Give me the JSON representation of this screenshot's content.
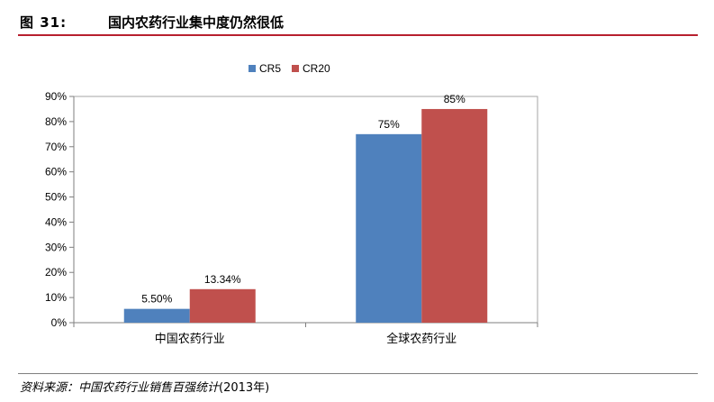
{
  "header": {
    "figure_label": "图 31:",
    "figure_title": "国内农药行业集中度仍然很低"
  },
  "footer": {
    "source_text": "资料来源：中国农药行业销售百强统计",
    "source_year": "(2013年)"
  },
  "colors": {
    "rule_top": "#b7202e",
    "CR5": "#4f81bd",
    "CR20": "#c0504d"
  },
  "chart_data": {
    "type": "bar",
    "title": "",
    "xlabel": "",
    "ylabel": "",
    "categories": [
      "中国农药行业",
      "全球农药行业"
    ],
    "series": [
      {
        "name": "CR5",
        "values": [
          5.5,
          75
        ],
        "labels": [
          "5.50%",
          "75%"
        ]
      },
      {
        "name": "CR20",
        "values": [
          13.34,
          85
        ],
        "labels": [
          "13.34%",
          "85%"
        ]
      }
    ],
    "ylim": [
      0,
      90
    ],
    "yticks": [
      0,
      10,
      20,
      30,
      40,
      50,
      60,
      70,
      80,
      90
    ],
    "ytick_labels": [
      "0%",
      "10%",
      "20%",
      "30%",
      "40%",
      "50%",
      "60%",
      "70%",
      "80%",
      "90%"
    ],
    "grid": false,
    "legend": "top-center"
  }
}
